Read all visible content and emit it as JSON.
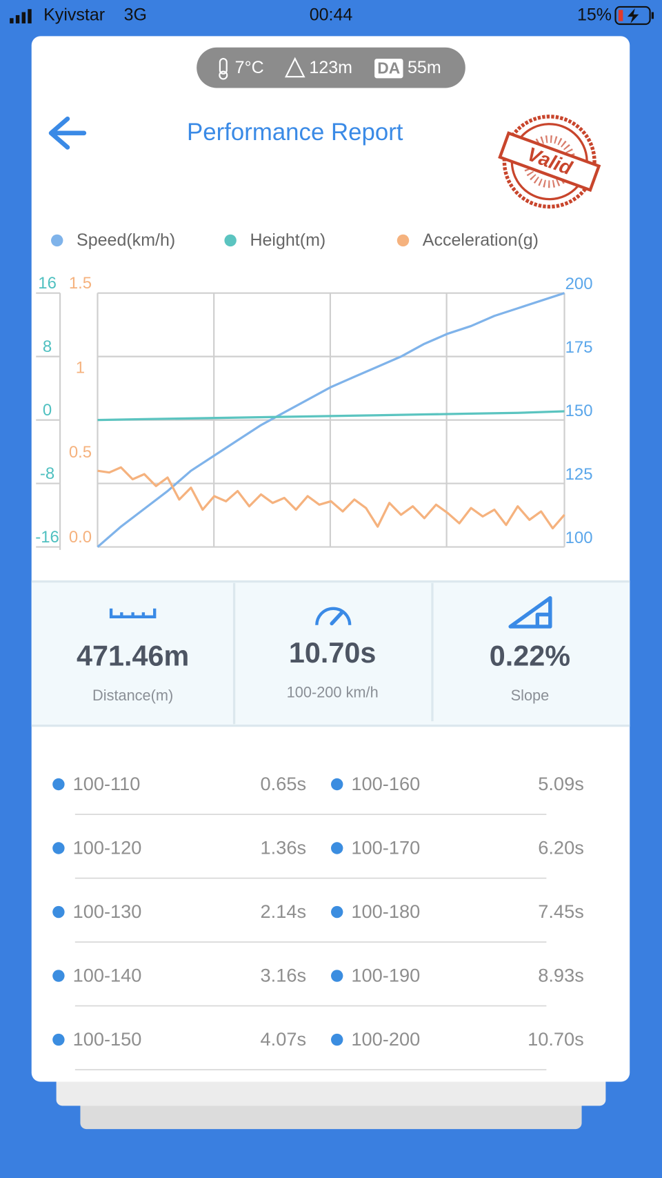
{
  "status_bar": {
    "carrier": "Kyivstar",
    "network": "3G",
    "time": "00:44",
    "battery": "15%"
  },
  "conditions": {
    "temperature": "7°C",
    "altitude": "123m",
    "da_label": "DA",
    "density_altitude": "55m"
  },
  "header": {
    "title": "Performance Report",
    "stamp": "Valid"
  },
  "chart_data": {
    "type": "line",
    "series": [
      {
        "name": "Speed(km/h)",
        "color": "#7fb3ea",
        "axis": "y",
        "values": [
          100,
          108,
          115,
          122,
          130,
          136,
          142,
          148,
          153,
          158,
          163,
          167,
          171,
          175,
          180,
          184,
          187,
          191,
          194,
          197,
          200
        ]
      },
      {
        "name": "Height(m)",
        "color": "#5bc4c0",
        "axis": "y2",
        "values": [
          0,
          0.1,
          0.2,
          0.3,
          0.4,
          0.5,
          0.6,
          0.7,
          0.8,
          0.9,
          1.1
        ]
      },
      {
        "name": "Acceleration(g)",
        "color": "#f5b27e",
        "axis": "y3",
        "values": [
          0.45,
          0.44,
          0.47,
          0.4,
          0.43,
          0.36,
          0.41,
          0.28,
          0.35,
          0.22,
          0.3,
          0.27,
          0.33,
          0.24,
          0.31,
          0.26,
          0.29,
          0.22,
          0.3,
          0.25,
          0.27,
          0.21,
          0.28,
          0.23,
          0.12,
          0.26,
          0.19,
          0.24,
          0.17,
          0.25,
          0.2,
          0.14,
          0.23,
          0.18,
          0.22,
          0.13,
          0.24,
          0.16,
          0.21,
          0.11,
          0.19
        ]
      }
    ],
    "ylim": [
      100,
      200
    ],
    "yticks": [
      100,
      125,
      150,
      175,
      200
    ],
    "ytick_color": "#5aa6ea",
    "y2lim": [
      -16,
      16
    ],
    "y2ticks": [
      -16,
      -8,
      0,
      8,
      16
    ],
    "y2tick_color": "#4fc0c0",
    "y3lim": [
      0,
      1.5
    ],
    "y3ticks": [
      {
        "value": 0,
        "label": "0.0"
      },
      0.5,
      1,
      1.5
    ],
    "y3tick_color": "#f5b27e",
    "grid": true
  },
  "stats": [
    {
      "value": "471.46m",
      "label": "Distance(m)"
    },
    {
      "value": "10.70s",
      "label": "100-200 km/h"
    },
    {
      "value": "0.22%",
      "label": "Slope"
    }
  ],
  "splits": [
    {
      "range": "100-110",
      "time": "0.65s"
    },
    {
      "range": "100-120",
      "time": "1.36s"
    },
    {
      "range": "100-130",
      "time": "2.14s"
    },
    {
      "range": "100-140",
      "time": "3.16s"
    },
    {
      "range": "100-150",
      "time": "4.07s"
    },
    {
      "range": "100-160",
      "time": "5.09s"
    },
    {
      "range": "100-170",
      "time": "6.20s"
    },
    {
      "range": "100-180",
      "time": "7.45s"
    },
    {
      "range": "100-190",
      "time": "8.93s"
    },
    {
      "range": "100-200",
      "time": "10.70s"
    }
  ]
}
